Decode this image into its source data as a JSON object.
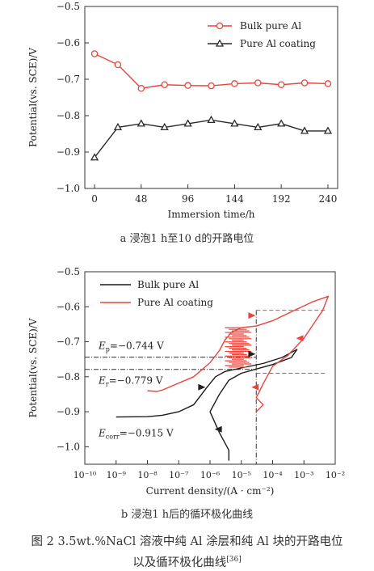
{
  "panel_a": {
    "caption": "a  浸泡1 h至10 d的开路电位"
  },
  "panel_b": {
    "caption": "b  浸泡1 h后的循环极化曲线",
    "annotations": {
      "ep": "Eₚ=−0.744 V",
      "er": "Eᵣ=−0.779 V",
      "ecorr": "Eᴄₒᵣᵣ=−0.915 V"
    },
    "ep_label": "p",
    "er_label": "r",
    "ecorr_label": "corr",
    "ep_value": "=−0.744 V",
    "er_value": "=−0.779 V",
    "ecorr_value": "=−0.915 V"
  },
  "figure_caption_line1": "图 2    3.5wt.%NaCl 溶液中纯 Al 涂层和纯 Al 块的开路电位",
  "figure_caption_line2": "以及循环极化曲线",
  "figure_caption_ref": "[36]",
  "chart_data": [
    {
      "type": "line",
      "x": [
        0,
        24,
        48,
        72,
        96,
        120,
        144,
        168,
        192,
        216,
        240
      ],
      "series": [
        {
          "name": "Bulk pure Al",
          "color": "#e8453c",
          "marker": "circle",
          "values": [
            -0.63,
            -0.66,
            -0.725,
            -0.715,
            -0.717,
            -0.718,
            -0.712,
            -0.71,
            -0.715,
            -0.71,
            -0.712
          ]
        },
        {
          "name": "Pure Al coating",
          "color": "#2a2a2a",
          "marker": "triangle",
          "values": [
            -0.915,
            -0.832,
            -0.822,
            -0.832,
            -0.822,
            -0.812,
            -0.822,
            -0.832,
            -0.822,
            -0.842,
            -0.842
          ]
        }
      ],
      "xlabel": "Immersion time/h",
      "ylabel": "Potential(vs. SCE)/V",
      "xticks": [
        "0",
        "48",
        "96",
        "144",
        "192",
        "240"
      ],
      "yticks": [
        "-0.5",
        "-0.6",
        "-0.7",
        "-0.8",
        "-0.9",
        "-1.0"
      ],
      "xlim": [
        -10,
        250
      ],
      "ylim": [
        -1.0,
        -0.5
      ],
      "legend": "top-right"
    },
    {
      "type": "line",
      "x_scale": "log",
      "series": [
        {
          "name": "Bulk pure Al",
          "color": "#1a1a1a",
          "points": [
            [
              1e-09,
              -0.915
            ],
            [
              1e-08,
              -0.914
            ],
            [
              3e-08,
              -0.91
            ],
            [
              1e-07,
              -0.9
            ],
            [
              3e-07,
              -0.88
            ],
            [
              8e-07,
              -0.83
            ],
            [
              1.5e-06,
              -0.8
            ],
            [
              3e-06,
              -0.785
            ],
            [
              1e-05,
              -0.775
            ],
            [
              5e-05,
              -0.762
            ],
            [
              0.0002,
              -0.745
            ],
            [
              0.0006,
              -0.722
            ],
            [
              0.0004,
              -0.745
            ],
            [
              0.0001,
              -0.765
            ],
            [
              3e-05,
              -0.778
            ],
            [
              1e-05,
              -0.79
            ],
            [
              4e-06,
              -0.81
            ],
            [
              2e-06,
              -0.85
            ],
            [
              1e-06,
              -0.9
            ],
            [
              2e-06,
              -0.96
            ],
            [
              4e-06,
              -1.01
            ],
            [
              4e-06,
              -1.04
            ]
          ]
        },
        {
          "name": "Pure Al coating",
          "color": "#e8453c",
          "points": [
            [
              1e-08,
              -0.84
            ],
            [
              2e-08,
              -0.842
            ],
            [
              3e-08,
              -0.838
            ],
            [
              3e-07,
              -0.8
            ],
            [
              1e-06,
              -0.76
            ],
            [
              2e-06,
              -0.725
            ],
            [
              3e-06,
              -0.695
            ],
            [
              5e-06,
              -0.672
            ],
            [
              1e-05,
              -0.66
            ],
            [
              3e-05,
              -0.655
            ],
            [
              0.0001,
              -0.64
            ],
            [
              0.0005,
              -0.61
            ],
            [
              0.002,
              -0.585
            ],
            [
              0.006,
              -0.57
            ],
            [
              0.004,
              -0.61
            ],
            [
              0.002,
              -0.65
            ],
            [
              0.001,
              -0.69
            ],
            [
              0.0003,
              -0.74
            ],
            [
              0.0001,
              -0.77
            ],
            [
              5e-05,
              -0.82
            ],
            [
              3e-05,
              -0.86
            ],
            [
              5e-05,
              -0.88
            ],
            [
              3e-05,
              -0.9
            ]
          ]
        }
      ],
      "xlabel": "Current density/(A · cm⁻²)",
      "ylabel": "Potential(vs. SCE)/V",
      "xticks": [
        "10⁻¹⁰",
        "10⁻⁹",
        "10⁻⁸",
        "10⁻⁷",
        "10⁻⁶",
        "10⁻⁵",
        "10⁻⁴",
        "10⁻³",
        "10⁻²"
      ],
      "yticks": [
        "-0.5",
        "-0.6",
        "-0.7",
        "-0.8",
        "-0.9",
        "-1.0"
      ],
      "xlim": [
        1e-10,
        0.01
      ],
      "ylim": [
        -1.05,
        -0.5
      ],
      "legend": "top-left"
    }
  ]
}
